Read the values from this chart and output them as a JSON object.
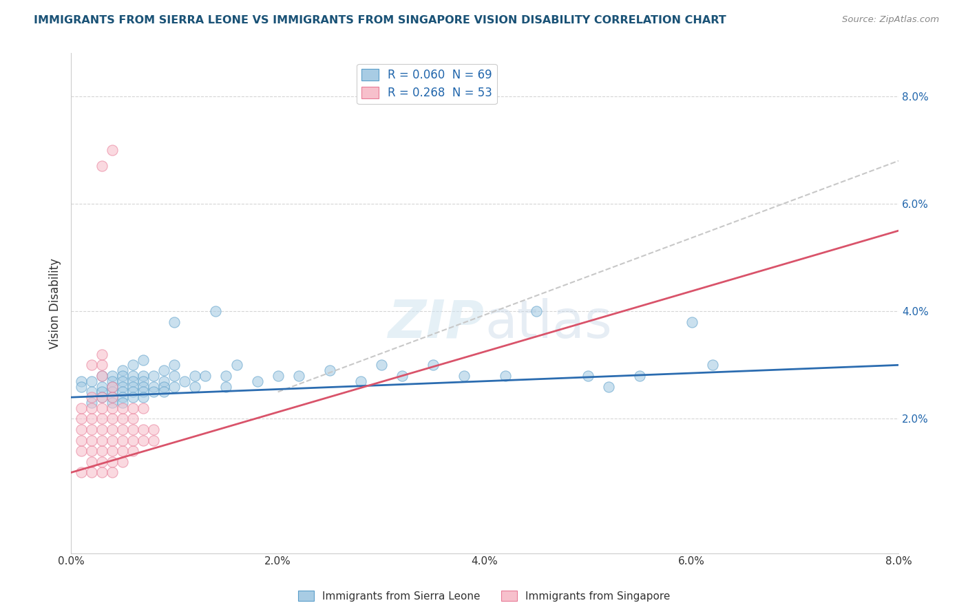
{
  "title": "IMMIGRANTS FROM SIERRA LEONE VS IMMIGRANTS FROM SINGAPORE VISION DISABILITY CORRELATION CHART",
  "source_text": "Source: ZipAtlas.com",
  "ylabel": "Vision Disability",
  "xlim": [
    0.0,
    0.08
  ],
  "ylim": [
    -0.005,
    0.088
  ],
  "xticks": [
    0.0,
    0.02,
    0.04,
    0.06,
    0.08
  ],
  "yticks": [
    0.02,
    0.04,
    0.06,
    0.08
  ],
  "watermark": "ZIPatlas",
  "blue_color": "#a8cce4",
  "pink_color": "#f7c0cc",
  "blue_edge_color": "#5a9ec9",
  "pink_edge_color": "#e87a96",
  "blue_line_color": "#2b6cb0",
  "pink_line_color": "#d9536a",
  "dashed_line_color": "#c8c8c8",
  "title_color": "#1a5276",
  "legend_text_color": "#2166ac",
  "grid_color": "#d5d5d5",
  "sierra_leone_points": [
    [
      0.001,
      0.027
    ],
    [
      0.001,
      0.026
    ],
    [
      0.002,
      0.027
    ],
    [
      0.002,
      0.025
    ],
    [
      0.002,
      0.023
    ],
    [
      0.003,
      0.028
    ],
    [
      0.003,
      0.026
    ],
    [
      0.003,
      0.025
    ],
    [
      0.003,
      0.024
    ],
    [
      0.004,
      0.028
    ],
    [
      0.004,
      0.027
    ],
    [
      0.004,
      0.026
    ],
    [
      0.004,
      0.025
    ],
    [
      0.004,
      0.024
    ],
    [
      0.004,
      0.023
    ],
    [
      0.005,
      0.029
    ],
    [
      0.005,
      0.028
    ],
    [
      0.005,
      0.027
    ],
    [
      0.005,
      0.026
    ],
    [
      0.005,
      0.025
    ],
    [
      0.005,
      0.024
    ],
    [
      0.005,
      0.023
    ],
    [
      0.006,
      0.03
    ],
    [
      0.006,
      0.028
    ],
    [
      0.006,
      0.027
    ],
    [
      0.006,
      0.026
    ],
    [
      0.006,
      0.025
    ],
    [
      0.006,
      0.024
    ],
    [
      0.007,
      0.031
    ],
    [
      0.007,
      0.028
    ],
    [
      0.007,
      0.027
    ],
    [
      0.007,
      0.026
    ],
    [
      0.007,
      0.025
    ],
    [
      0.007,
      0.024
    ],
    [
      0.008,
      0.028
    ],
    [
      0.008,
      0.026
    ],
    [
      0.008,
      0.025
    ],
    [
      0.009,
      0.029
    ],
    [
      0.009,
      0.027
    ],
    [
      0.009,
      0.026
    ],
    [
      0.009,
      0.025
    ],
    [
      0.01,
      0.03
    ],
    [
      0.01,
      0.028
    ],
    [
      0.01,
      0.026
    ],
    [
      0.01,
      0.038
    ],
    [
      0.011,
      0.027
    ],
    [
      0.012,
      0.028
    ],
    [
      0.012,
      0.026
    ],
    [
      0.013,
      0.028
    ],
    [
      0.014,
      0.04
    ],
    [
      0.015,
      0.028
    ],
    [
      0.015,
      0.026
    ],
    [
      0.016,
      0.03
    ],
    [
      0.018,
      0.027
    ],
    [
      0.02,
      0.028
    ],
    [
      0.022,
      0.028
    ],
    [
      0.025,
      0.029
    ],
    [
      0.028,
      0.027
    ],
    [
      0.03,
      0.03
    ],
    [
      0.032,
      0.028
    ],
    [
      0.035,
      0.03
    ],
    [
      0.038,
      0.028
    ],
    [
      0.042,
      0.028
    ],
    [
      0.045,
      0.04
    ],
    [
      0.05,
      0.028
    ],
    [
      0.052,
      0.026
    ],
    [
      0.055,
      0.028
    ],
    [
      0.06,
      0.038
    ],
    [
      0.062,
      0.03
    ]
  ],
  "singapore_points": [
    [
      0.001,
      0.01
    ],
    [
      0.001,
      0.014
    ],
    [
      0.001,
      0.016
    ],
    [
      0.001,
      0.018
    ],
    [
      0.001,
      0.02
    ],
    [
      0.001,
      0.022
    ],
    [
      0.002,
      0.01
    ],
    [
      0.002,
      0.012
    ],
    [
      0.002,
      0.014
    ],
    [
      0.002,
      0.016
    ],
    [
      0.002,
      0.018
    ],
    [
      0.002,
      0.02
    ],
    [
      0.002,
      0.022
    ],
    [
      0.002,
      0.024
    ],
    [
      0.002,
      0.03
    ],
    [
      0.003,
      0.01
    ],
    [
      0.003,
      0.012
    ],
    [
      0.003,
      0.014
    ],
    [
      0.003,
      0.016
    ],
    [
      0.003,
      0.018
    ],
    [
      0.003,
      0.02
    ],
    [
      0.003,
      0.022
    ],
    [
      0.003,
      0.024
    ],
    [
      0.003,
      0.028
    ],
    [
      0.003,
      0.03
    ],
    [
      0.003,
      0.032
    ],
    [
      0.004,
      0.01
    ],
    [
      0.004,
      0.012
    ],
    [
      0.004,
      0.014
    ],
    [
      0.004,
      0.016
    ],
    [
      0.004,
      0.018
    ],
    [
      0.004,
      0.02
    ],
    [
      0.004,
      0.022
    ],
    [
      0.004,
      0.024
    ],
    [
      0.004,
      0.026
    ],
    [
      0.005,
      0.012
    ],
    [
      0.005,
      0.014
    ],
    [
      0.005,
      0.016
    ],
    [
      0.005,
      0.018
    ],
    [
      0.005,
      0.02
    ],
    [
      0.005,
      0.022
    ],
    [
      0.006,
      0.014
    ],
    [
      0.006,
      0.016
    ],
    [
      0.006,
      0.018
    ],
    [
      0.006,
      0.02
    ],
    [
      0.006,
      0.022
    ],
    [
      0.007,
      0.016
    ],
    [
      0.007,
      0.018
    ],
    [
      0.007,
      0.022
    ],
    [
      0.008,
      0.016
    ],
    [
      0.008,
      0.018
    ],
    [
      0.003,
      0.067
    ],
    [
      0.004,
      0.07
    ]
  ],
  "sl_trend": [
    0.0,
    0.024,
    0.08,
    0.03
  ],
  "sg_trend": [
    0.0,
    0.01,
    0.08,
    0.055
  ],
  "dashed_trend": [
    0.02,
    0.025,
    0.08,
    0.068
  ]
}
